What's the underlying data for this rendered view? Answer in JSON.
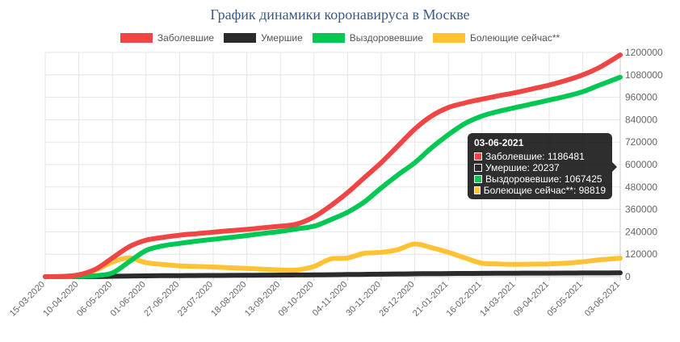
{
  "colors": {
    "grid": "#e6e6e6",
    "axis_text": "#666666",
    "title": "#3d5a80"
  },
  "chart_data": {
    "type": "line",
    "title": "График динамики коронавируса в Москве",
    "legend_position": "top",
    "grid": true,
    "ylim": [
      0,
      1200000
    ],
    "y_axis_position": "right",
    "y_ticks": [
      "0",
      "120000",
      "240000",
      "360000",
      "480000",
      "600000",
      "720000",
      "840000",
      "960000",
      "1080000",
      "1200000"
    ],
    "x_labels": [
      "15-03-2020",
      "10-04-2020",
      "06-05-2020",
      "01-06-2020",
      "27-06-2020",
      "23-07-2020",
      "18-08-2020",
      "13-09-2020",
      "09-10-2020",
      "04-11-2020",
      "30-11-2020",
      "26-12-2020",
      "21-01-2021",
      "16-02-2021",
      "14-03-2021",
      "09-04-2021",
      "05-05-2021",
      "03-06-2021"
    ],
    "x": [
      "15-03-2020",
      "27-03-2020",
      "10-04-2020",
      "23-04-2020",
      "06-05-2020",
      "19-05-2020",
      "01-06-2020",
      "14-06-2020",
      "27-06-2020",
      "10-07-2020",
      "23-07-2020",
      "05-08-2020",
      "18-08-2020",
      "31-08-2020",
      "13-09-2020",
      "26-09-2020",
      "09-10-2020",
      "22-10-2020",
      "04-11-2020",
      "17-11-2020",
      "30-11-2020",
      "13-12-2020",
      "26-12-2020",
      "08-01-2021",
      "21-01-2021",
      "03-02-2021",
      "16-02-2021",
      "01-03-2021",
      "14-03-2021",
      "27-03-2021",
      "09-04-2021",
      "22-04-2021",
      "05-05-2021",
      "18-05-2021",
      "03-06-2021"
    ],
    "series": [
      {
        "name": "Заболевшие",
        "color": "#f04545",
        "values": [
          0,
          1000,
          10000,
          40000,
          100000,
          160000,
          195000,
          210000,
          222000,
          230000,
          238000,
          246000,
          253000,
          262000,
          270000,
          282000,
          320000,
          380000,
          450000,
          530000,
          610000,
          700000,
          790000,
          860000,
          905000,
          930000,
          950000,
          968000,
          985000,
          1005000,
          1025000,
          1050000,
          1080000,
          1120000,
          1186481
        ]
      },
      {
        "name": "Умершие",
        "color": "#2b2b2b",
        "values": [
          0,
          0,
          100,
          500,
          2000,
          3500,
          4500,
          5000,
          5500,
          6000,
          6500,
          7000,
          7500,
          8000,
          8500,
          9000,
          9500,
          10500,
          11500,
          12500,
          13500,
          14500,
          15500,
          16200,
          16800,
          17300,
          17800,
          18200,
          18600,
          18900,
          19200,
          19500,
          19800,
          20000,
          20237
        ]
      },
      {
        "name": "Выздоровевшие",
        "color": "#00c853",
        "values": [
          0,
          100,
          1000,
          5000,
          20000,
          80000,
          140000,
          165000,
          178000,
          190000,
          200000,
          210000,
          220000,
          232000,
          242000,
          256000,
          270000,
          305000,
          345000,
          400000,
          475000,
          545000,
          610000,
          690000,
          760000,
          820000,
          860000,
          885000,
          905000,
          925000,
          945000,
          965000,
          990000,
          1025000,
          1067425
        ]
      },
      {
        "name": "Болеющие сейчас**",
        "color": "#ffc233",
        "values": [
          0,
          800,
          9000,
          35000,
          78000,
          100000,
          75000,
          65000,
          58000,
          55000,
          52000,
          48000,
          44000,
          40000,
          36000,
          36000,
          55000,
          95000,
          100000,
          125000,
          130000,
          145000,
          175000,
          155000,
          130000,
          100000,
          72000,
          68000,
          66000,
          67000,
          68000,
          72000,
          80000,
          90000,
          98819
        ]
      }
    ]
  },
  "tooltip": {
    "date": "03-06-2021",
    "rows": [
      {
        "label": "Заболевшие: 1186481",
        "color": "#f04545"
      },
      {
        "label": "Умершие: 20237",
        "color": "#2b2b2b"
      },
      {
        "label": "Выздоровевшие: 1067425",
        "color": "#00c853"
      },
      {
        "label": "Болеющие сейчас**: 98819",
        "color": "#ffc233"
      }
    ]
  }
}
